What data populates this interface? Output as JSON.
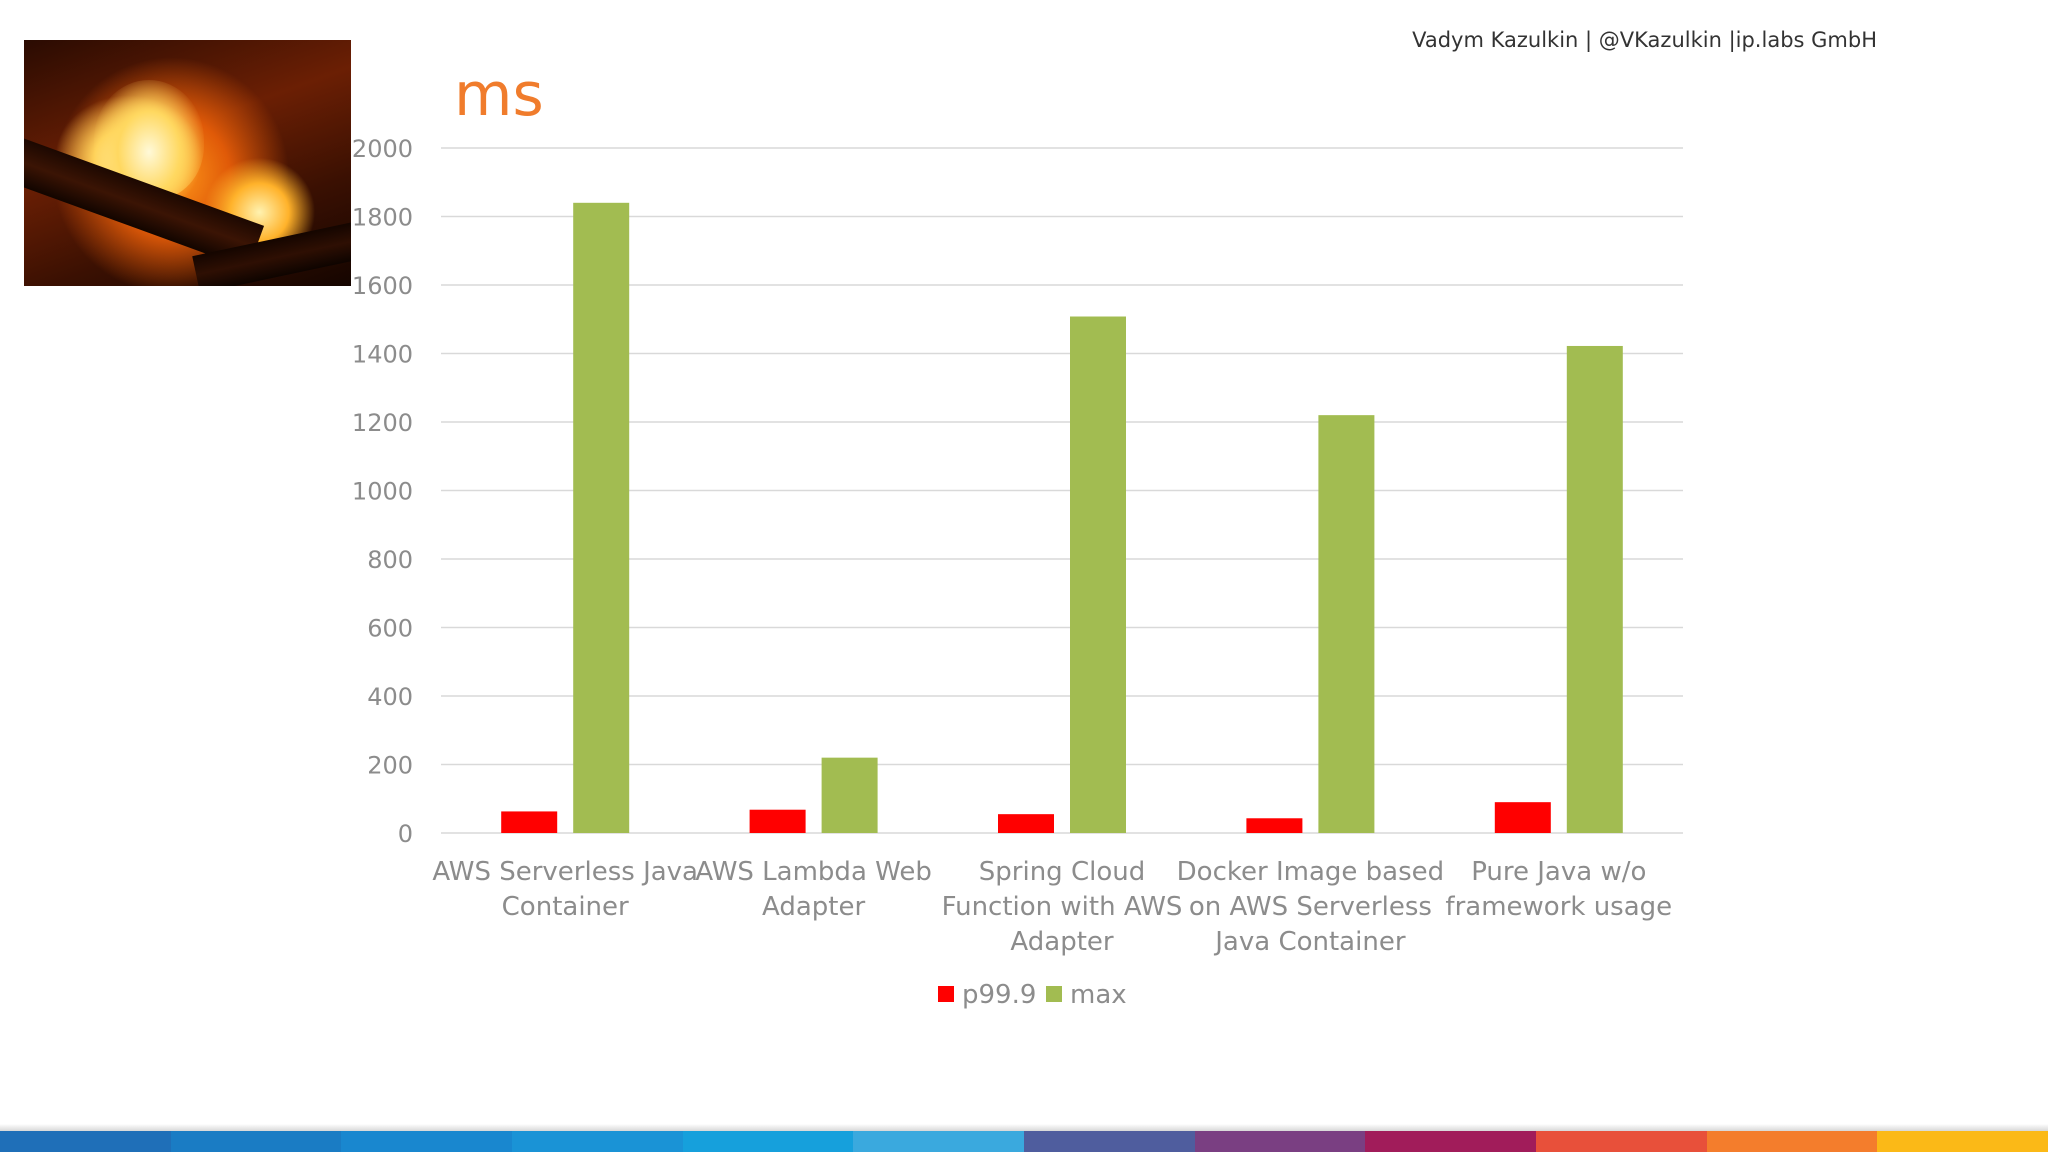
{
  "header": {
    "author_line": "Vadym Kazulkin | @VKazulkin |ip.labs GmbH"
  },
  "image": {
    "icon": "fire-photo"
  },
  "chart_data": {
    "type": "bar",
    "title": "ms",
    "xlabel": "",
    "ylabel": "ms",
    "ylim": [
      0,
      2000
    ],
    "yticks": [
      0,
      200,
      400,
      600,
      800,
      1000,
      1200,
      1400,
      1600,
      1800,
      2000
    ],
    "grid": true,
    "legend_position": "bottom-center",
    "categories": [
      [
        "AWS Serverless Java",
        "Container"
      ],
      [
        "AWS Lambda Web",
        "Adapter"
      ],
      [
        "Spring Cloud",
        "Function with AWS",
        "Adapter"
      ],
      [
        "Docker Image based",
        "on AWS Serverless",
        "Java Container"
      ],
      [
        "Pure Java w/o",
        "framework usage"
      ]
    ],
    "series": [
      {
        "name": "p99.9",
        "color": "#ff0000",
        "values": [
          63,
          68,
          55,
          43,
          90
        ]
      },
      {
        "name": "max",
        "color": "#a2bc51",
        "values": [
          1840,
          220,
          1508,
          1220,
          1422
        ]
      }
    ]
  },
  "footer": {
    "stripe_colors": [
      "#1f6fb8",
      "#1a7cc4",
      "#1987cf",
      "#1a93d6",
      "#16a0dc",
      "#3aa9de",
      "#4f5d9e",
      "#7a3f82",
      "#a11c5a",
      "#e8503a",
      "#f47d2c",
      "#fbb917"
    ]
  }
}
